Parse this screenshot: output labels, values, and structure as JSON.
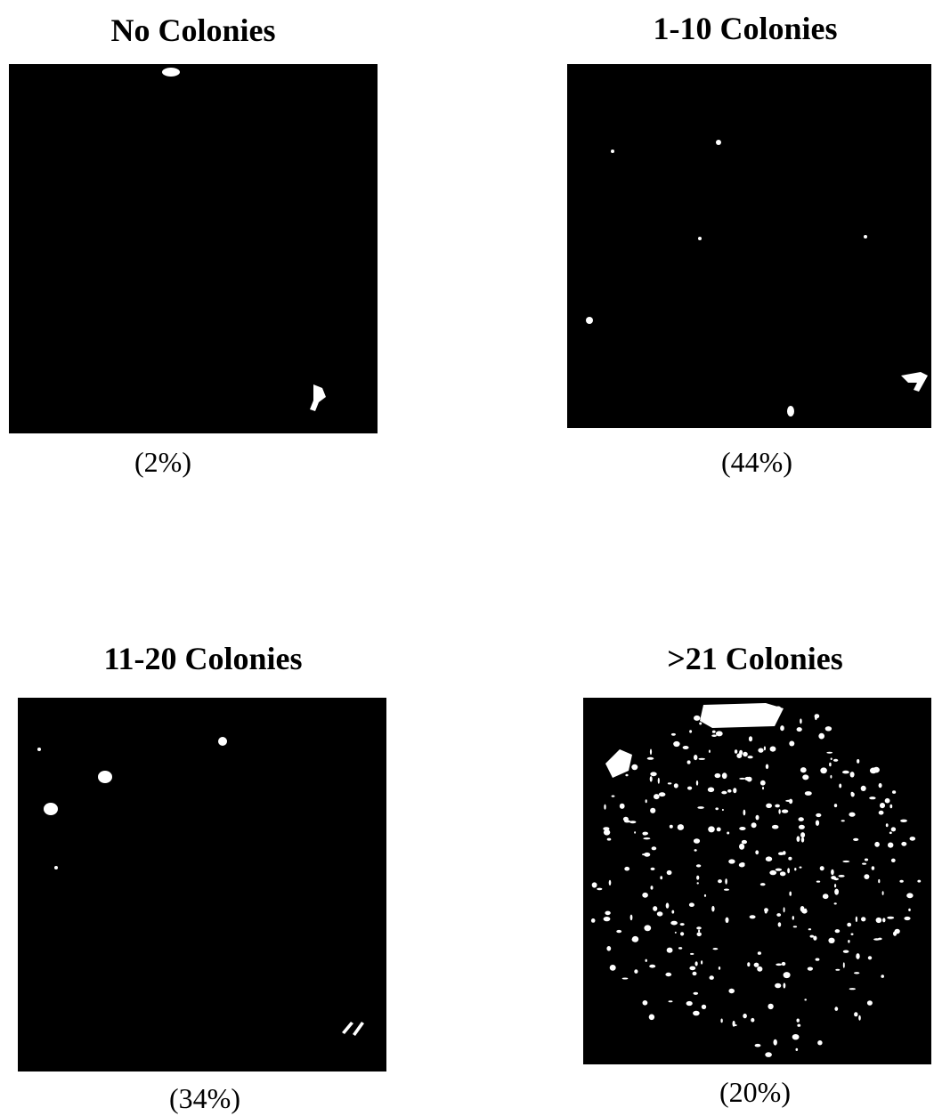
{
  "panels": [
    {
      "title": "No Colonies",
      "caption": "(2%)"
    },
    {
      "title": "1-10 Colonies",
      "caption": "(44%)"
    },
    {
      "title": "11-20 Colonies",
      "caption": "(34%)"
    },
    {
      "title": ">21 Colonies",
      "caption": "(20%)"
    }
  ]
}
